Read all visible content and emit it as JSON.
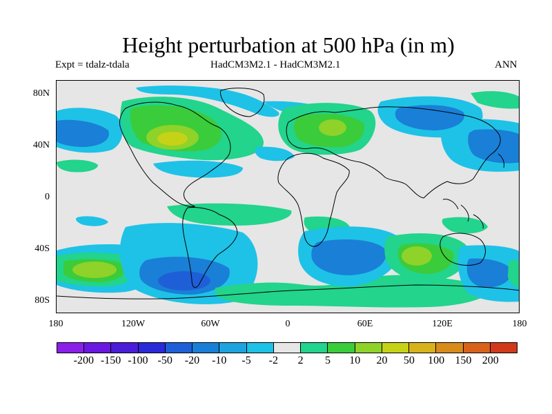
{
  "title": "Height perturbation at 500 hPa (in m)",
  "subtitle_left": "Expt = tdalz-tdala",
  "subtitle_center": "HadCM3M2.1 - HadCM3M2.1",
  "subtitle_right": "ANN",
  "lat_labels": [
    "80N",
    "40N",
    "0",
    "40S",
    "80S"
  ],
  "lon_labels": [
    "180",
    "120W",
    "60W",
    "0",
    "60E",
    "120E",
    "180"
  ],
  "colorbar": {
    "levels": [
      "-200",
      "-150",
      "-100",
      "-50",
      "-20",
      "-10",
      "-5",
      "-2",
      "2",
      "5",
      "10",
      "20",
      "50",
      "100",
      "150",
      "200"
    ],
    "colors": [
      "#8a1fe8",
      "#6a18e0",
      "#4a1ed8",
      "#2a2ad8",
      "#1e5fd8",
      "#1a7fd6",
      "#1ea3e0",
      "#1ec2e6",
      "#e6e6e6",
      "#22d48c",
      "#3acc3a",
      "#8ed22a",
      "#c6d216",
      "#d8b21a",
      "#d88a1a",
      "#d8621a",
      "#d03a1a"
    ]
  },
  "colors": {
    "background": "#e6e6e6",
    "coast": "#000000"
  }
}
